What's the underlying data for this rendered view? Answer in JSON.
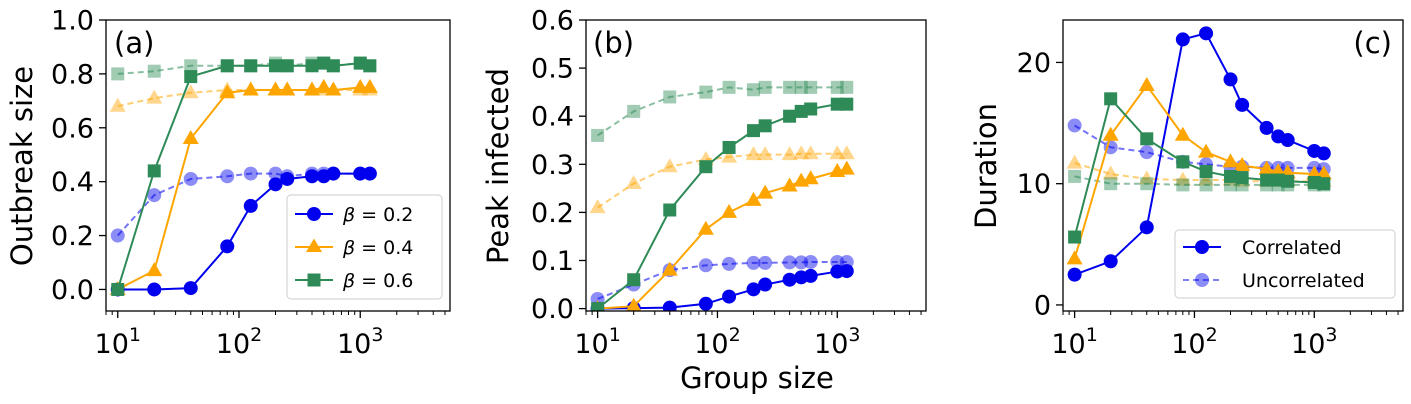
{
  "figure_xlabel": "Group size",
  "legend_beta": [
    {
      "beta_label": "β",
      "value_label": " = 0.2",
      "color": "#0000ee",
      "marker": "circle"
    },
    {
      "beta_label": "β",
      "value_label": " = 0.4",
      "color": "#ffa500",
      "marker": "triangle"
    },
    {
      "beta_label": "β",
      "value_label": " = 0.6",
      "color": "#2e8b57",
      "marker": "square"
    }
  ],
  "legend_corr": [
    {
      "label": "Correlated",
      "style": "solid"
    },
    {
      "label": "Uncorrelated",
      "style": "dashed"
    }
  ],
  "chart_data": [
    {
      "type": "line",
      "panel_label": "(a)",
      "title": "",
      "xlabel": "",
      "ylabel": "Outbreak size",
      "xscale": "log",
      "xlim": [
        8,
        5500
      ],
      "ylim": [
        -0.08,
        1.0
      ],
      "xticks": [
        10,
        100,
        1000
      ],
      "xtick_labels": [
        {
          "base": "10",
          "exp": "1"
        },
        {
          "base": "10",
          "exp": "2"
        },
        {
          "base": "10",
          "exp": "3"
        }
      ],
      "yticks": [
        0.0,
        0.2,
        0.4,
        0.6,
        0.8,
        1.0
      ],
      "ytick_labels": [
        "0.0",
        "0.2",
        "0.4",
        "0.6",
        "0.8",
        "1.0"
      ],
      "legend": "beta",
      "legend_position": "lower-right",
      "x": [
        10,
        20,
        40,
        80,
        125,
        200,
        250,
        400,
        500,
        600,
        1000,
        1200
      ],
      "series": [
        {
          "name": "β = 0.2 uncorrelated",
          "color": "#0000ee",
          "marker": "circle",
          "style": "dashed",
          "values": [
            0.2,
            0.35,
            0.41,
            0.42,
            0.43,
            0.43,
            0.42,
            0.43,
            0.43,
            0.43,
            0.43,
            0.43
          ]
        },
        {
          "name": "β = 0.4 uncorrelated",
          "color": "#ffa500",
          "marker": "triangle",
          "style": "dashed",
          "values": [
            0.68,
            0.71,
            0.73,
            0.74,
            0.74,
            0.74,
            0.74,
            0.74,
            0.74,
            0.74,
            0.74,
            0.74
          ]
        },
        {
          "name": "β = 0.6 uncorrelated",
          "color": "#2e8b57",
          "marker": "square",
          "style": "dashed",
          "values": [
            0.8,
            0.81,
            0.83,
            0.83,
            0.83,
            0.84,
            0.83,
            0.84,
            0.84,
            0.83,
            0.84,
            0.83
          ]
        },
        {
          "name": "β = 0.2 correlated",
          "color": "#0000ee",
          "marker": "circle",
          "style": "solid",
          "values": [
            0.0,
            0.0,
            0.005,
            0.16,
            0.31,
            0.39,
            0.41,
            0.42,
            0.42,
            0.43,
            0.43,
            0.43
          ]
        },
        {
          "name": "β = 0.4 correlated",
          "color": "#ffa500",
          "marker": "triangle",
          "style": "solid",
          "values": [
            0.0,
            0.07,
            0.56,
            0.73,
            0.74,
            0.74,
            0.74,
            0.74,
            0.75,
            0.74,
            0.75,
            0.75
          ]
        },
        {
          "name": "β = 0.6 correlated",
          "color": "#2e8b57",
          "marker": "square",
          "style": "solid",
          "values": [
            0.0,
            0.44,
            0.79,
            0.83,
            0.83,
            0.83,
            0.83,
            0.83,
            0.84,
            0.83,
            0.84,
            0.83
          ]
        }
      ]
    },
    {
      "type": "line",
      "panel_label": "(b)",
      "title": "",
      "xlabel": "Group size",
      "ylabel": "Peak infected",
      "xscale": "log",
      "xlim": [
        8,
        5500
      ],
      "ylim": [
        -0.005,
        0.6
      ],
      "xticks": [
        10,
        100,
        1000
      ],
      "xtick_labels": [
        {
          "base": "10",
          "exp": "1"
        },
        {
          "base": "10",
          "exp": "2"
        },
        {
          "base": "10",
          "exp": "3"
        }
      ],
      "yticks": [
        0.0,
        0.1,
        0.2,
        0.3,
        0.4,
        0.5,
        0.6
      ],
      "ytick_labels": [
        "0.0",
        "0.1",
        "0.2",
        "0.3",
        "0.4",
        "0.5",
        "0.6"
      ],
      "legend": "none",
      "x": [
        10,
        20,
        40,
        80,
        125,
        200,
        250,
        400,
        500,
        600,
        1000,
        1200
      ],
      "series": [
        {
          "name": "β = 0.2 uncorrelated",
          "color": "#0000ee",
          "marker": "circle",
          "style": "dashed",
          "values": [
            0.02,
            0.05,
            0.08,
            0.09,
            0.093,
            0.095,
            0.095,
            0.096,
            0.096,
            0.097,
            0.097,
            0.097
          ]
        },
        {
          "name": "β = 0.4 uncorrelated",
          "color": "#ffa500",
          "marker": "triangle",
          "style": "dashed",
          "values": [
            0.21,
            0.26,
            0.295,
            0.31,
            0.315,
            0.32,
            0.32,
            0.32,
            0.322,
            0.322,
            0.322,
            0.322
          ]
        },
        {
          "name": "β = 0.6 uncorrelated",
          "color": "#2e8b57",
          "marker": "square",
          "style": "dashed",
          "values": [
            0.36,
            0.41,
            0.44,
            0.45,
            0.46,
            0.455,
            0.46,
            0.46,
            0.46,
            0.46,
            0.46,
            0.46
          ]
        },
        {
          "name": "β = 0.2 correlated",
          "color": "#0000ee",
          "marker": "circle",
          "style": "solid",
          "values": [
            0.0,
            0.001,
            0.002,
            0.01,
            0.025,
            0.04,
            0.05,
            0.06,
            0.065,
            0.068,
            0.077,
            0.078
          ]
        },
        {
          "name": "β = 0.4 correlated",
          "color": "#ffa500",
          "marker": "triangle",
          "style": "solid",
          "values": [
            0.0,
            0.005,
            0.08,
            0.165,
            0.2,
            0.225,
            0.24,
            0.255,
            0.265,
            0.27,
            0.285,
            0.29
          ]
        },
        {
          "name": "β = 0.6 correlated",
          "color": "#2e8b57",
          "marker": "square",
          "style": "solid",
          "values": [
            0.0,
            0.06,
            0.205,
            0.295,
            0.335,
            0.37,
            0.38,
            0.4,
            0.41,
            0.415,
            0.425,
            0.425
          ]
        }
      ]
    },
    {
      "type": "line",
      "panel_label": "(c)",
      "title": "",
      "xlabel": "",
      "ylabel": "Duration",
      "xscale": "log",
      "xlim": [
        8,
        5500
      ],
      "ylim": [
        -0.5,
        23.5
      ],
      "xticks": [
        10,
        100,
        1000
      ],
      "xtick_labels": [
        {
          "base": "10",
          "exp": "1"
        },
        {
          "base": "10",
          "exp": "2"
        },
        {
          "base": "10",
          "exp": "3"
        }
      ],
      "yticks": [
        0,
        10,
        20
      ],
      "ytick_labels": [
        "0",
        "10",
        "20"
      ],
      "legend": "correlation",
      "legend_position": "lower-right",
      "x": [
        10,
        20,
        40,
        80,
        125,
        200,
        250,
        400,
        500,
        600,
        1000,
        1200
      ],
      "series": [
        {
          "name": "β = 0.2 uncorrelated",
          "color": "#0000ee",
          "marker": "circle",
          "style": "dashed",
          "values": [
            14.8,
            13.0,
            12.6,
            11.8,
            11.6,
            11.4,
            11.4,
            11.3,
            11.3,
            11.3,
            11.3,
            11.2
          ]
        },
        {
          "name": "β = 0.4 uncorrelated",
          "color": "#ffa500",
          "marker": "triangle",
          "style": "dashed",
          "values": [
            11.7,
            10.8,
            10.4,
            10.3,
            10.3,
            10.3,
            10.2,
            10.2,
            10.2,
            10.2,
            10.2,
            10.2
          ]
        },
        {
          "name": "β = 0.6 uncorrelated",
          "color": "#2e8b57",
          "marker": "square",
          "style": "dashed",
          "values": [
            10.6,
            10.0,
            10.0,
            9.9,
            9.9,
            9.9,
            9.9,
            9.9,
            9.9,
            9.9,
            9.9,
            9.9
          ]
        },
        {
          "name": "β = 0.2 correlated",
          "color": "#0000ee",
          "marker": "circle",
          "style": "solid",
          "values": [
            2.5,
            3.6,
            6.4,
            21.9,
            22.4,
            18.6,
            16.5,
            14.6,
            13.9,
            13.6,
            12.7,
            12.5
          ]
        },
        {
          "name": "β = 0.4 correlated",
          "color": "#ffa500",
          "marker": "triangle",
          "style": "solid",
          "values": [
            3.8,
            14.0,
            18.1,
            14.0,
            12.6,
            11.8,
            11.5,
            11.2,
            11.0,
            10.9,
            10.8,
            10.8
          ]
        },
        {
          "name": "β = 0.6 correlated",
          "color": "#2e8b57",
          "marker": "square",
          "style": "solid",
          "values": [
            5.6,
            17.0,
            13.7,
            11.8,
            11.0,
            10.6,
            10.5,
            10.3,
            10.3,
            10.2,
            10.1,
            10.0
          ]
        }
      ]
    }
  ]
}
